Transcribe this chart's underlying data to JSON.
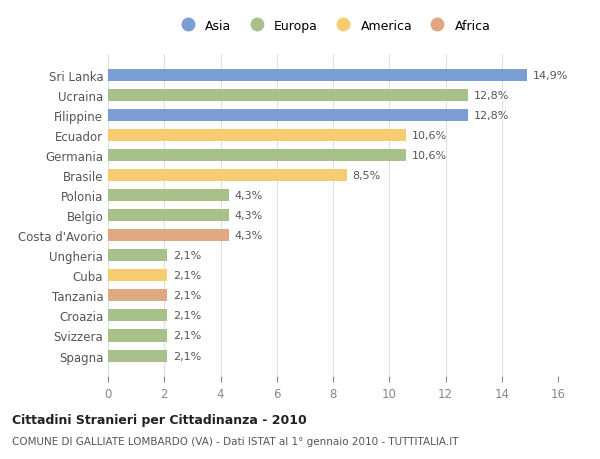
{
  "categories": [
    "Spagna",
    "Svizzera",
    "Croazia",
    "Tanzania",
    "Cuba",
    "Ungheria",
    "Costa d'Avorio",
    "Belgio",
    "Polonia",
    "Brasile",
    "Germania",
    "Ecuador",
    "Filippine",
    "Ucraina",
    "Sri Lanka"
  ],
  "values": [
    2.1,
    2.1,
    2.1,
    2.1,
    2.1,
    2.1,
    4.3,
    4.3,
    4.3,
    8.5,
    10.6,
    10.6,
    12.8,
    12.8,
    14.9
  ],
  "colors": [
    "#a8c08a",
    "#a8c08a",
    "#a8c08a",
    "#dfa882",
    "#f5cc72",
    "#a8c08a",
    "#dfa882",
    "#a8c08a",
    "#a8c08a",
    "#f5cc72",
    "#a8c08a",
    "#f5cc72",
    "#7b9fd4",
    "#a8c08a",
    "#7b9fd4"
  ],
  "labels": [
    "2,1%",
    "2,1%",
    "2,1%",
    "2,1%",
    "2,1%",
    "2,1%",
    "4,3%",
    "4,3%",
    "4,3%",
    "8,5%",
    "10,6%",
    "10,6%",
    "12,8%",
    "12,8%",
    "14,9%"
  ],
  "legend": {
    "Asia": "#7b9fd4",
    "Europa": "#a8c08a",
    "America": "#f5cc72",
    "Africa": "#dfa882"
  },
  "title": "Cittadini Stranieri per Cittadinanza - 2010",
  "subtitle": "COMUNE DI GALLIATE LOMBARDO (VA) - Dati ISTAT al 1° gennaio 2010 - TUTTITALIA.IT",
  "xlim": [
    0,
    16
  ],
  "xticks": [
    0,
    2,
    4,
    6,
    8,
    10,
    12,
    14,
    16
  ],
  "background_color": "#ffffff",
  "grid_color": "#e0e0e0",
  "bar_height": 0.6,
  "label_color": "#555555",
  "tick_color": "#888888"
}
